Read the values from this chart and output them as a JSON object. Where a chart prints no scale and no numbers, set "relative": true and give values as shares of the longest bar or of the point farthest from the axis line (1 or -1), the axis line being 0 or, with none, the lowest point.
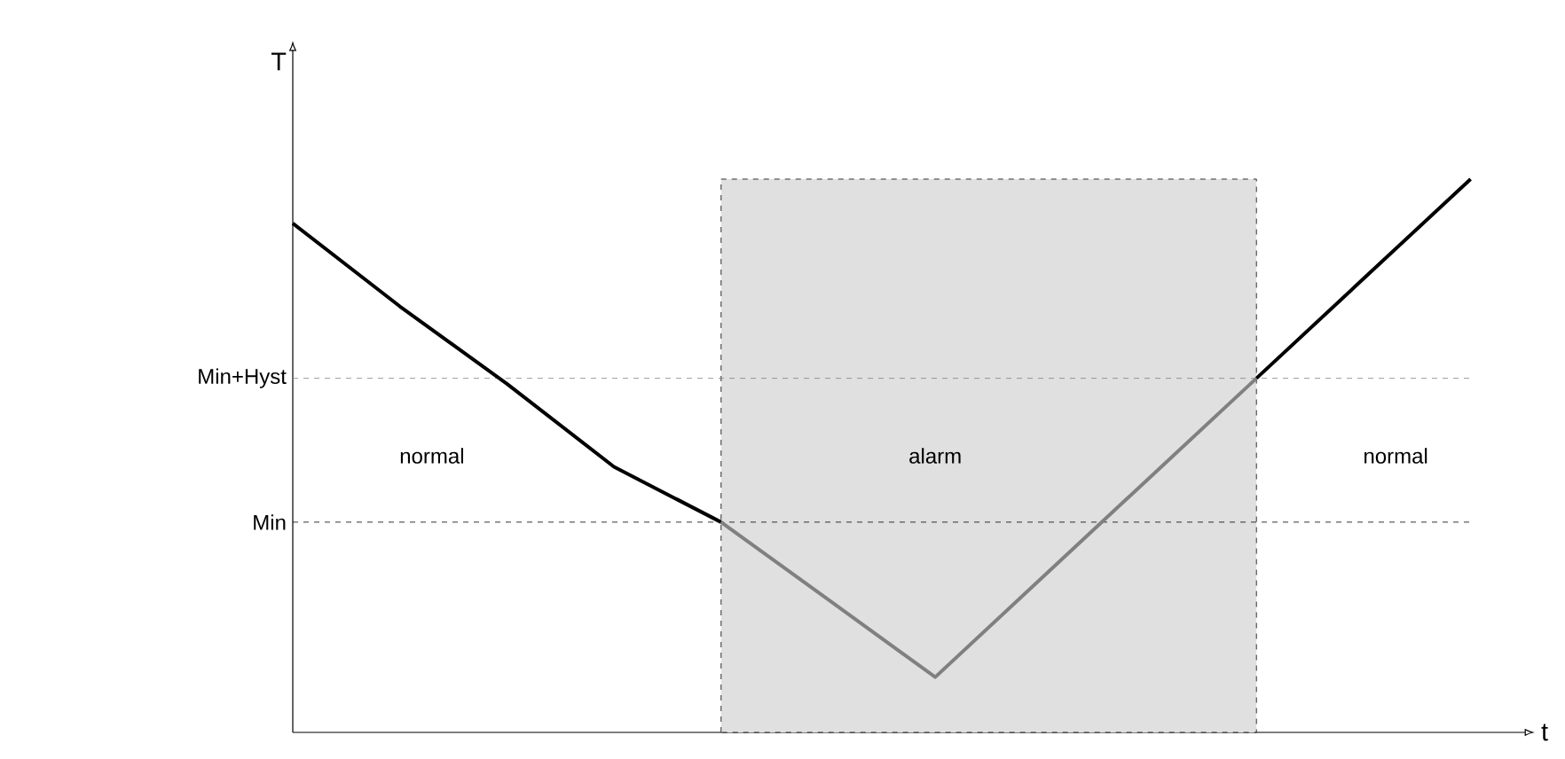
{
  "chart_data": {
    "type": "line",
    "relative": true,
    "xlabel": "t",
    "ylabel": "T",
    "categories": [
      null,
      null,
      null,
      null,
      null,
      null,
      null,
      null,
      null,
      null,
      null,
      null
    ],
    "series": [
      {
        "color": "#000000",
        "values": [
          0.92,
          0.77,
          0.63,
          0.48,
          0.38,
          null,
          null,
          null,
          null,
          0.64,
          0.82,
          1.0
        ]
      },
      {
        "color": "#808080",
        "values": [
          null,
          null,
          null,
          null,
          0.38,
          0.24,
          0.1,
          0.28,
          0.46,
          0.64,
          null,
          null
        ]
      }
    ],
    "ref_lines": [
      {
        "axis": "y",
        "value": 0.64,
        "label": "Min+Hyst",
        "line_style": "dashed",
        "color": "#808080"
      },
      {
        "axis": "y",
        "value": 0.38,
        "label": "Min",
        "line_style": "dashed",
        "color": "#000000"
      }
    ],
    "annotations": [
      "normal",
      "alarm",
      "normal"
    ],
    "marker": "none",
    "line_style": "solid"
  }
}
